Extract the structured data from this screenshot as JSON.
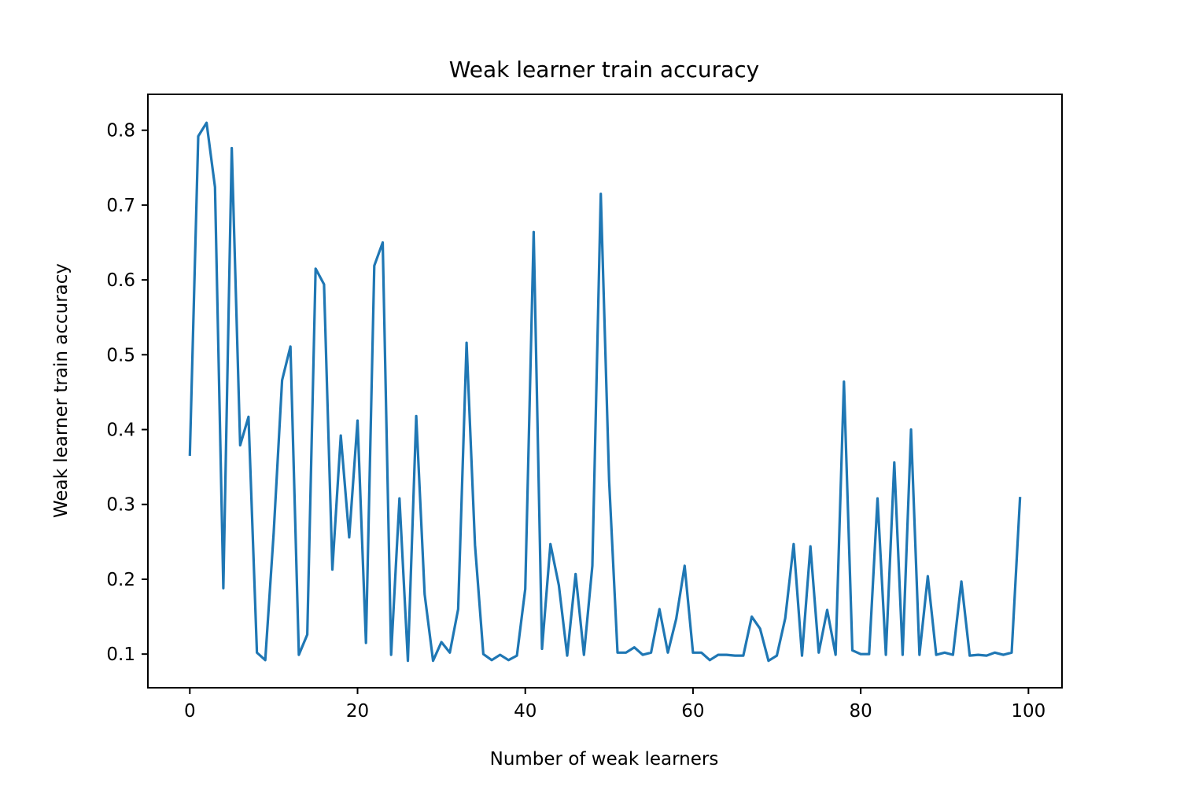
{
  "chart_data": {
    "type": "line",
    "title": "Weak learner train accuracy",
    "xlabel": "Number of weak learners",
    "ylabel": "Weak learner train accuracy",
    "xlim": [
      -5,
      104
    ],
    "ylim": [
      0.055,
      0.848
    ],
    "grid": false,
    "xticks": [
      0,
      20,
      40,
      60,
      80,
      100
    ],
    "xtick_labels": [
      "0",
      "20",
      "40",
      "60",
      "80",
      "100"
    ],
    "yticks": [
      0.1,
      0.2,
      0.3,
      0.4,
      0.5,
      0.6,
      0.7,
      0.8
    ],
    "ytick_labels": [
      "0.1",
      "0.2",
      "0.3",
      "0.4",
      "0.5",
      "0.6",
      "0.7",
      "0.8"
    ],
    "color": "#1f77b4",
    "series": [
      {
        "x": [
          0,
          1,
          2,
          3,
          4,
          5,
          6,
          7,
          8,
          9,
          10,
          11,
          12,
          13,
          14,
          15,
          16,
          17,
          18,
          19,
          20,
          21,
          22,
          23,
          24,
          25,
          26,
          27,
          28,
          29,
          30,
          31,
          32,
          33,
          34,
          35,
          36,
          37,
          38,
          39,
          40,
          41,
          42,
          43,
          44,
          45,
          46,
          47,
          48,
          49,
          50,
          51,
          52,
          53,
          54,
          55,
          56,
          57,
          58,
          59,
          60,
          61,
          62,
          63,
          64,
          65,
          66,
          67,
          68,
          69,
          70,
          71,
          72,
          73,
          74,
          75,
          76,
          77,
          78,
          79,
          80,
          81,
          82,
          83,
          84,
          85,
          86,
          87,
          88,
          89,
          90,
          91,
          92,
          93,
          94,
          95,
          96,
          97,
          98,
          99
        ],
        "y": [
          0.365,
          0.792,
          0.81,
          0.724,
          0.188,
          0.776,
          0.379,
          0.417,
          0.102,
          0.092,
          0.262,
          0.466,
          0.511,
          0.099,
          0.126,
          0.615,
          0.594,
          0.213,
          0.392,
          0.256,
          0.412,
          0.115,
          0.619,
          0.65,
          0.099,
          0.308,
          0.091,
          0.418,
          0.18,
          0.091,
          0.116,
          0.102,
          0.16,
          0.516,
          0.246,
          0.1,
          0.092,
          0.099,
          0.092,
          0.098,
          0.187,
          0.664,
          0.107,
          0.247,
          0.192,
          0.098,
          0.207,
          0.099,
          0.218,
          0.715,
          0.332,
          0.102,
          0.102,
          0.109,
          0.099,
          0.102,
          0.16,
          0.102,
          0.147,
          0.218,
          0.102,
          0.102,
          0.092,
          0.099,
          0.099,
          0.098,
          0.098,
          0.15,
          0.134,
          0.091,
          0.098,
          0.148,
          0.247,
          0.098,
          0.244,
          0.102,
          0.159,
          0.099,
          0.464,
          0.105,
          0.1,
          0.1,
          0.308,
          0.099,
          0.356,
          0.099,
          0.4,
          0.099,
          0.204,
          0.099,
          0.102,
          0.099,
          0.197,
          0.098,
          0.099,
          0.098,
          0.102,
          0.099,
          0.102,
          0.31
        ]
      }
    ]
  }
}
